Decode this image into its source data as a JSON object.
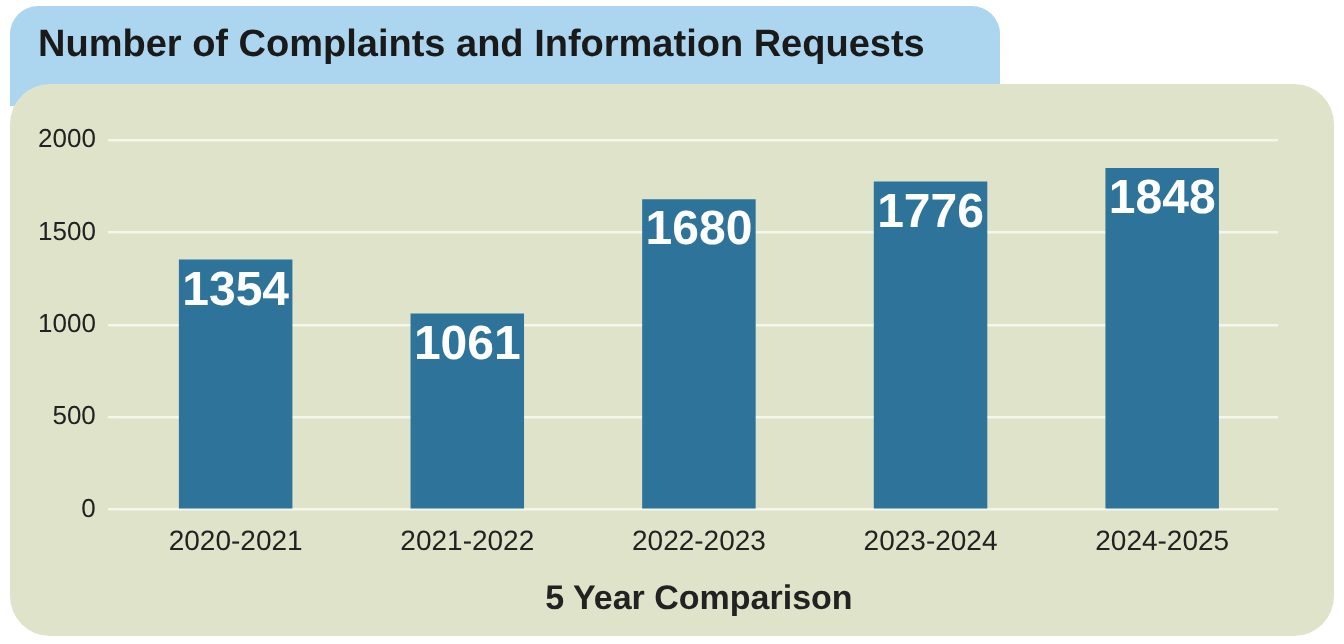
{
  "chart_data": {
    "type": "bar",
    "title": "Number of Complaints and Information Requests",
    "xlabel": "5 Year Comparison",
    "categories": [
      "2020-2021",
      "2021-2022",
      "2022-2023",
      "2023-2024",
      "2024-2025"
    ],
    "values": [
      1354,
      1061,
      1680,
      1776,
      1848
    ],
    "color": "#2e7399",
    "ylim": [
      0,
      2000
    ],
    "yticks": [
      0,
      500,
      1000,
      1500,
      2000
    ],
    "grid": "y",
    "data_labels": true
  }
}
